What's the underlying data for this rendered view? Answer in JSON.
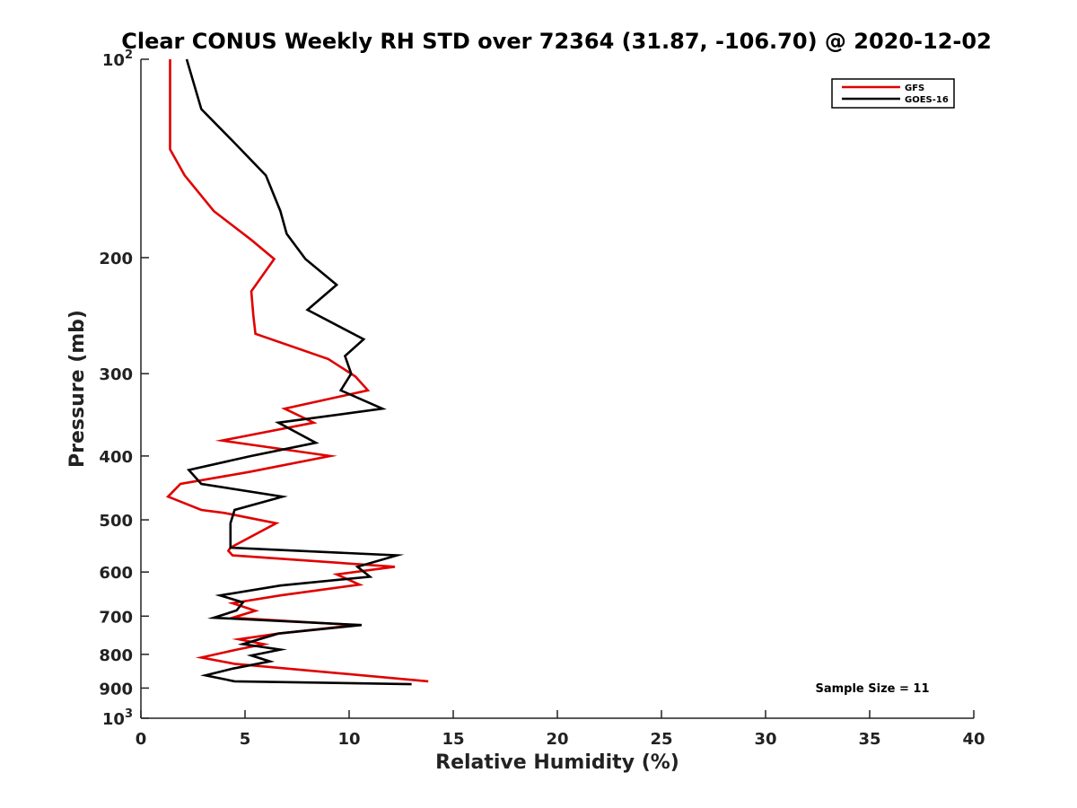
{
  "chart_data": {
    "type": "line",
    "title": "Clear CONUS Weekly RH STD over 72364 (31.87, -106.70) @ 2020-12-02",
    "xlabel": "Relative Humidity (%)",
    "ylabel": "Pressure (mb)",
    "xlim": [
      0,
      40
    ],
    "ylim": [
      100,
      1000
    ],
    "y_scale": "log",
    "y_reversed": true,
    "x_ticks": [
      0,
      5,
      10,
      15,
      20,
      25,
      30,
      35,
      40
    ],
    "x_tick_labels": [
      "0",
      "5",
      "10",
      "15",
      "20",
      "25",
      "30",
      "35",
      "40"
    ],
    "y_ticks": [
      100,
      200,
      300,
      400,
      500,
      600,
      700,
      800,
      900,
      1000
    ],
    "y_tick_labels": [
      {
        "base": "10",
        "exp": "2"
      },
      {
        "base": "200",
        "exp": ""
      },
      {
        "base": "300",
        "exp": ""
      },
      {
        "base": "400",
        "exp": ""
      },
      {
        "base": "500",
        "exp": ""
      },
      {
        "base": "600",
        "exp": ""
      },
      {
        "base": "700",
        "exp": ""
      },
      {
        "base": "800",
        "exp": ""
      },
      {
        "base": "900",
        "exp": ""
      },
      {
        "base": "10",
        "exp": "3"
      }
    ],
    "legend_position": "top-right",
    "grid": false,
    "annotation": "Sample Size = 11",
    "series": [
      {
        "name": "GFS",
        "color": "#e00000",
        "x": [
          1.4,
          1.4,
          1.4,
          2.1,
          3.5,
          5.3,
          6.4,
          5.3,
          5.4,
          5.5,
          9.0,
          10.3,
          10.9,
          6.9,
          8.3,
          3.9,
          9.1,
          5.2,
          1.9,
          1.3,
          2.9,
          4.0,
          6.5,
          4.3,
          4.2,
          4.4,
          12.2,
          9.4,
          10.5,
          6.7,
          4.4,
          5.5,
          4.4,
          10.3,
          6.6,
          4.7,
          5.9,
          4.6,
          2.9,
          4.5,
          13.8
        ],
        "y": [
          100,
          119,
          137,
          150,
          170,
          188,
          201,
          225,
          245,
          261,
          285,
          303,
          318,
          339,
          356,
          379,
          400,
          423,
          441,
          461,
          483,
          488,
          506,
          551,
          557,
          566,
          589,
          605,
          627,
          651,
          669,
          687,
          704,
          722,
          744,
          759,
          772,
          787,
          809,
          827,
          879
        ]
      },
      {
        "name": "GOES-16",
        "color": "#000000",
        "x": [
          2.2,
          2.9,
          4.4,
          6.0,
          6.7,
          7.0,
          7.9,
          9.4,
          8.0,
          10.7,
          9.8,
          10.1,
          9.6,
          11.6,
          6.6,
          8.4,
          5.3,
          2.3,
          2.9,
          6.8,
          4.5,
          4.3,
          4.3,
          12.3,
          10.4,
          11.0,
          6.7,
          3.8,
          4.9,
          4.6,
          3.5,
          10.6,
          6.6,
          4.9,
          6.7,
          5.3,
          6.2,
          4.4,
          3.1,
          4.5,
          13.0
        ],
        "y": [
          100,
          119,
          133,
          150,
          170,
          184,
          201,
          220,
          240,
          266,
          282,
          300,
          318,
          339,
          356,
          382,
          400,
          420,
          441,
          461,
          483,
          506,
          551,
          566,
          589,
          610,
          629,
          651,
          667,
          686,
          704,
          722,
          744,
          772,
          787,
          803,
          820,
          841,
          861,
          879,
          888
        ]
      }
    ]
  }
}
